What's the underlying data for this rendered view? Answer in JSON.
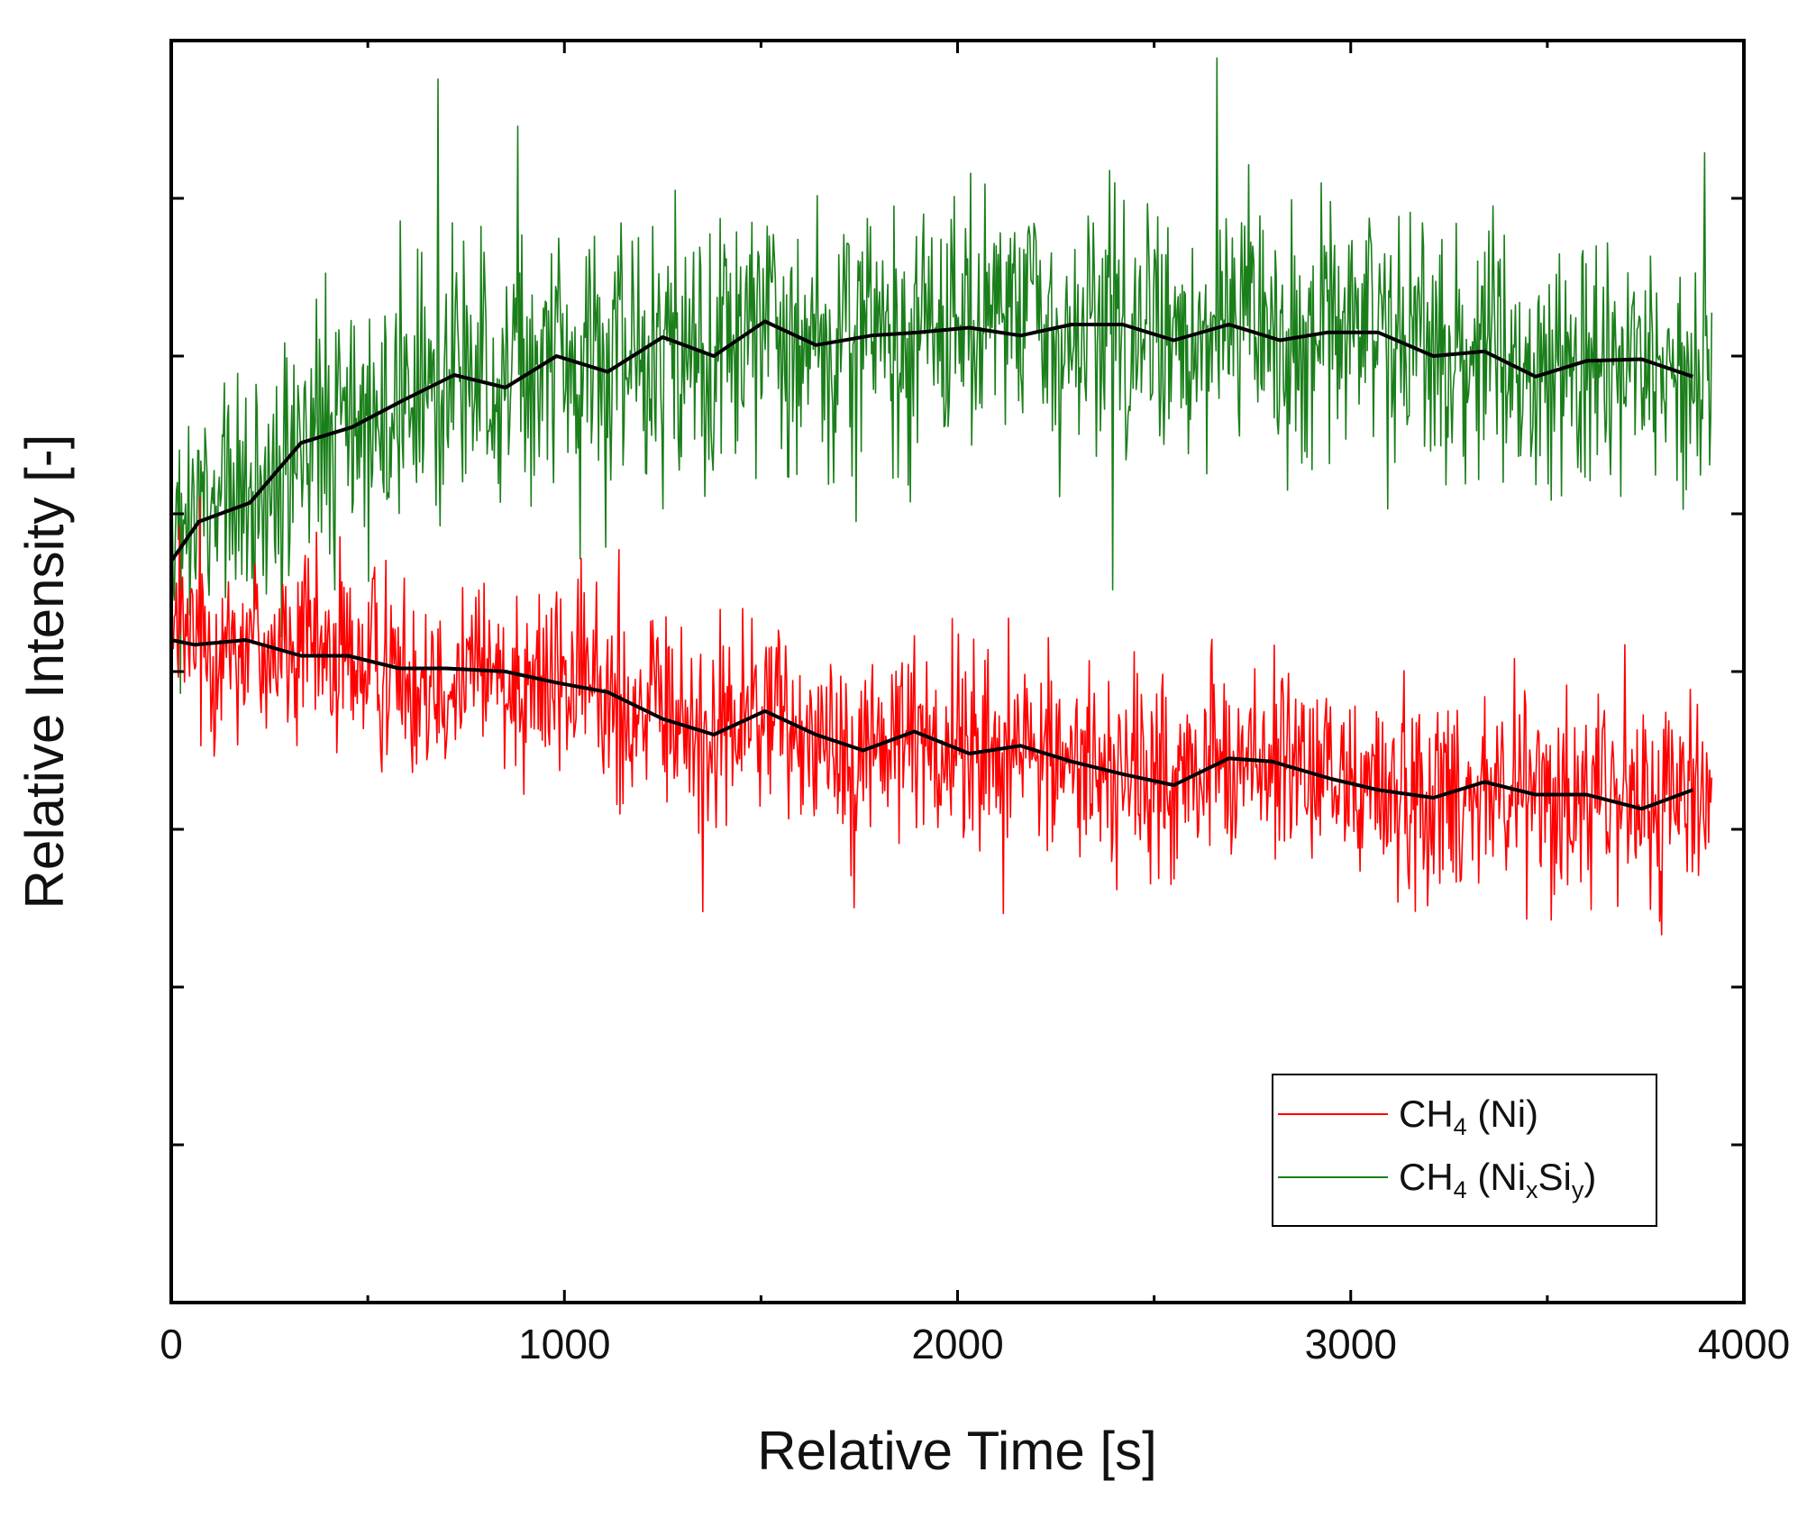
{
  "chart_data": {
    "type": "line",
    "title": "",
    "xlabel": "Relative Time [s]",
    "ylabel": "Relative Intensity [-]",
    "xlim": [
      0,
      4000
    ],
    "ylim": [
      0,
      8
    ],
    "x_ticks": [
      0,
      1000,
      2000,
      3000,
      4000
    ],
    "y_tick_positions": [
      0,
      1,
      2,
      3,
      4,
      5,
      6,
      7,
      8
    ],
    "y_tick_labels_shown": false,
    "grid": false,
    "legend_position": "bottom-right",
    "series": [
      {
        "name": "CH4 (Ni)",
        "legend": {
          "base": "CH",
          "sub": "4",
          "rest": " (Ni)"
        },
        "color": "#ff0000",
        "kind": "noisy",
        "x_range": [
          0,
          3920
        ],
        "amplitude": 0.55,
        "trend_x": [
          0,
          60,
          190,
          330,
          450,
          580,
          700,
          850,
          980,
          1110,
          1250,
          1380,
          1510,
          1640,
          1760,
          1890,
          2030,
          2160,
          2290,
          2420,
          2550,
          2690,
          2800,
          2950,
          3070,
          3210,
          3340,
          3470,
          3600,
          3740,
          3870
        ],
        "trend_y": [
          4.2,
          4.17,
          4.2,
          4.1,
          4.1,
          4.02,
          4.02,
          4.0,
          3.93,
          3.87,
          3.7,
          3.6,
          3.75,
          3.6,
          3.5,
          3.62,
          3.48,
          3.53,
          3.43,
          3.35,
          3.28,
          3.45,
          3.43,
          3.32,
          3.25,
          3.2,
          3.3,
          3.22,
          3.22,
          3.13,
          3.25
        ]
      },
      {
        "name": "CH4 (NixSiy)",
        "legend": {
          "base": "CH",
          "sub": "4",
          "rest": " (Ni",
          "sub2": "x",
          "rest2": "Si",
          "sub3": "y",
          "rest3": ")"
        },
        "color": "#1a7f1a",
        "kind": "noisy",
        "x_range": [
          0,
          3920
        ],
        "amplitude": 0.7,
        "trend_x": [
          0,
          70,
          200,
          330,
          460,
          590,
          720,
          850,
          980,
          1110,
          1250,
          1380,
          1510,
          1640,
          1780,
          1900,
          2030,
          2160,
          2290,
          2420,
          2550,
          2690,
          2820,
          2940,
          3070,
          3210,
          3340,
          3470,
          3600,
          3740,
          3870
        ],
        "trend_y": [
          4.7,
          4.95,
          5.07,
          5.45,
          5.55,
          5.72,
          5.88,
          5.8,
          6.0,
          5.9,
          6.12,
          6.0,
          6.22,
          6.07,
          6.13,
          6.15,
          6.18,
          6.13,
          6.2,
          6.2,
          6.1,
          6.2,
          6.1,
          6.15,
          6.15,
          6.0,
          6.03,
          5.87,
          5.97,
          5.98,
          5.87
        ]
      }
    ]
  }
}
